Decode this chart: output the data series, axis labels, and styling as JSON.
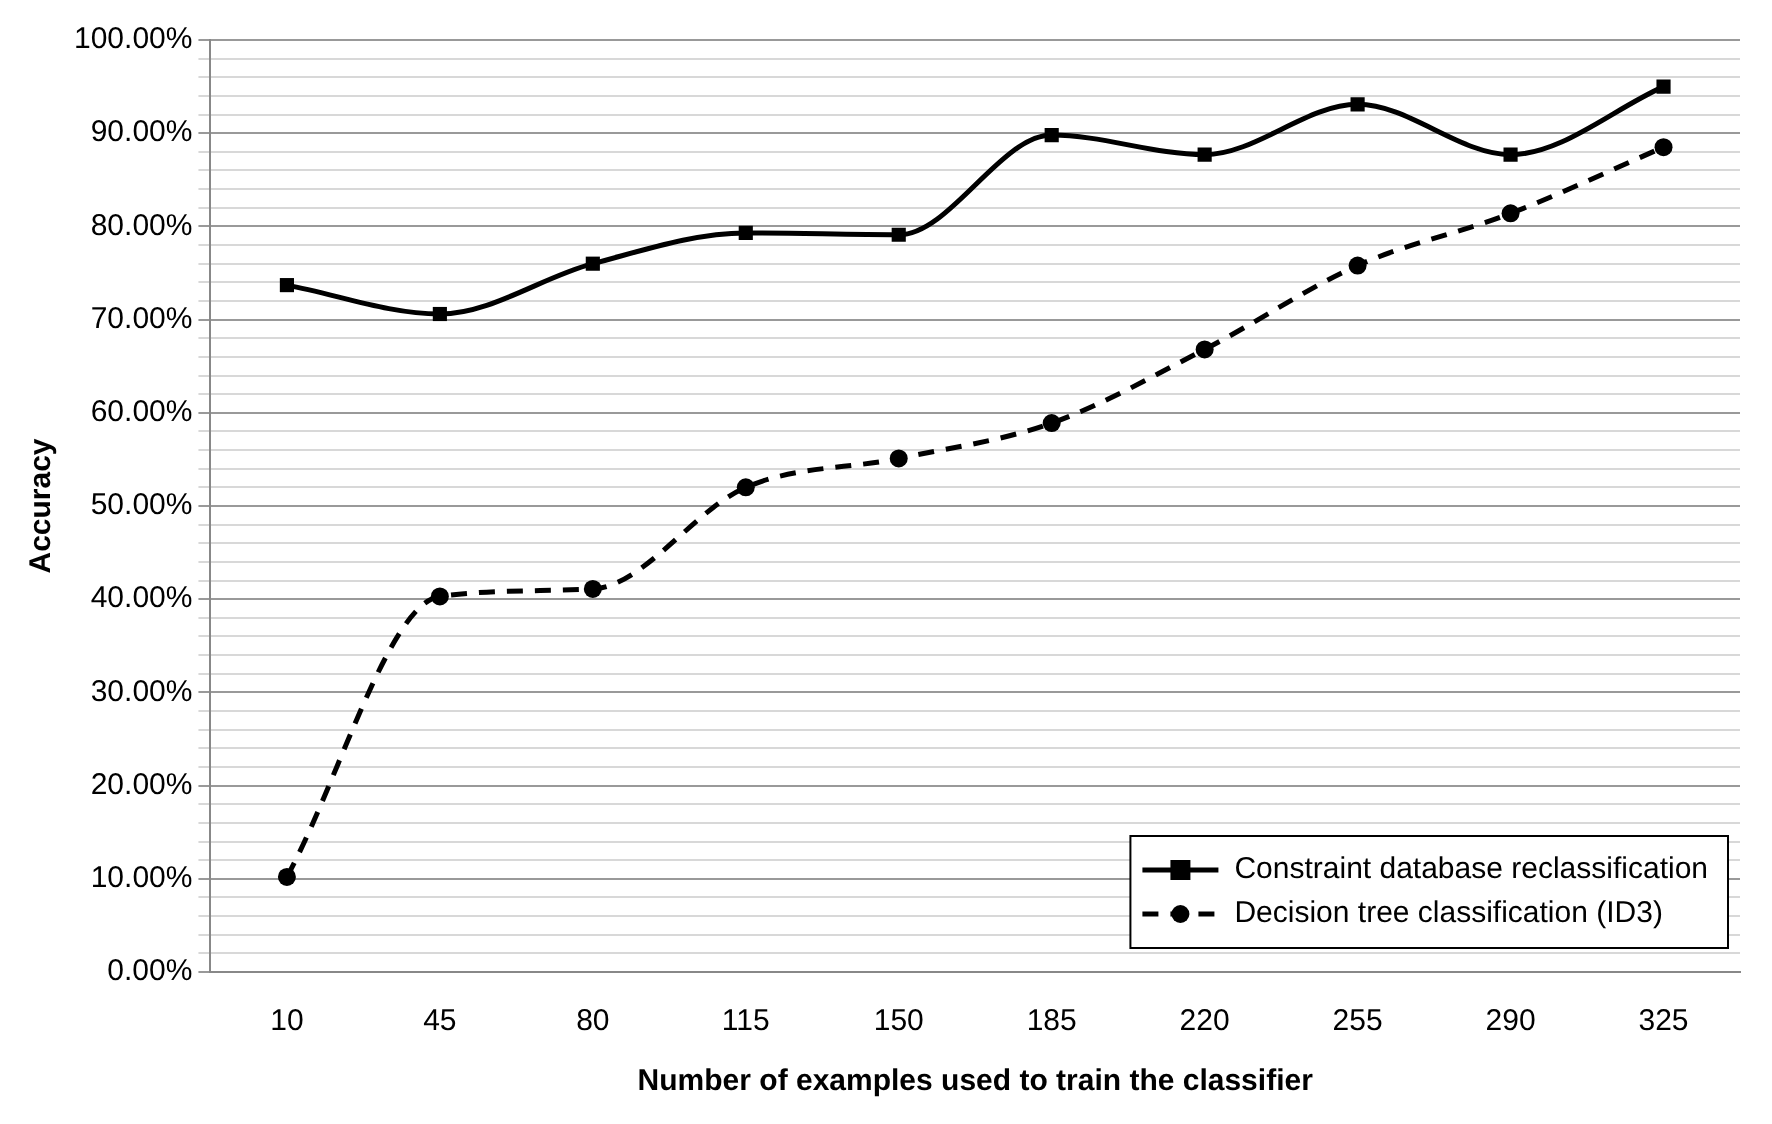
{
  "chart_data": {
    "type": "line",
    "xlabel": "Number of examples used to train the classifier",
    "ylabel": "Accuracy",
    "categories": [
      "10",
      "45",
      "80",
      "115",
      "150",
      "185",
      "220",
      "255",
      "290",
      "325"
    ],
    "series": [
      {
        "name": "Constraint database reclassification",
        "color": "#000000",
        "marker": "square",
        "line_style": "solid",
        "values": [
          73.7,
          70.6,
          76.0,
          79.3,
          79.1,
          89.8,
          87.7,
          93.1,
          87.7,
          95.0
        ]
      },
      {
        "name": "Decision tree classification (ID3)",
        "color": "#000000",
        "marker": "circle",
        "line_style": "dashed",
        "values": [
          10.2,
          40.3,
          41.1,
          52.0,
          55.1,
          58.9,
          66.8,
          75.8,
          81.4,
          88.5
        ]
      }
    ],
    "ylim": [
      0,
      100
    ],
    "yticks": [
      {
        "value": 0,
        "label": "0.00%"
      },
      {
        "value": 2,
        "label": null
      },
      {
        "value": 4,
        "label": null
      },
      {
        "value": 6,
        "label": null
      },
      {
        "value": 8,
        "label": null
      },
      {
        "value": 10,
        "label": "10.00%"
      },
      {
        "value": 12,
        "label": null
      },
      {
        "value": 14,
        "label": null
      },
      {
        "value": 16,
        "label": null
      },
      {
        "value": 18,
        "label": null
      },
      {
        "value": 20,
        "label": "20.00%"
      },
      {
        "value": 22,
        "label": null
      },
      {
        "value": 24,
        "label": null
      },
      {
        "value": 26,
        "label": null
      },
      {
        "value": 28,
        "label": null
      },
      {
        "value": 30,
        "label": "30.00%"
      },
      {
        "value": 32,
        "label": null
      },
      {
        "value": 34,
        "label": null
      },
      {
        "value": 36,
        "label": null
      },
      {
        "value": 38,
        "label": null
      },
      {
        "value": 40,
        "label": "40.00%"
      },
      {
        "value": 42,
        "label": null
      },
      {
        "value": 44,
        "label": null
      },
      {
        "value": 46,
        "label": null
      },
      {
        "value": 48,
        "label": null
      },
      {
        "value": 50,
        "label": "50.00%"
      },
      {
        "value": 52,
        "label": null
      },
      {
        "value": 54,
        "label": null
      },
      {
        "value": 56,
        "label": null
      },
      {
        "value": 58,
        "label": null
      },
      {
        "value": 60,
        "label": "60.00%"
      },
      {
        "value": 62,
        "label": null
      },
      {
        "value": 64,
        "label": null
      },
      {
        "value": 66,
        "label": null
      },
      {
        "value": 68,
        "label": null
      },
      {
        "value": 70,
        "label": "70.00%"
      },
      {
        "value": 72,
        "label": null
      },
      {
        "value": 74,
        "label": null
      },
      {
        "value": 76,
        "label": null
      },
      {
        "value": 78,
        "label": null
      },
      {
        "value": 80,
        "label": "80.00%"
      },
      {
        "value": 82,
        "label": null
      },
      {
        "value": 84,
        "label": null
      },
      {
        "value": 86,
        "label": null
      },
      {
        "value": 88,
        "label": null
      },
      {
        "value": 90,
        "label": "90.00%"
      },
      {
        "value": 92,
        "label": null
      },
      {
        "value": 94,
        "label": null
      },
      {
        "value": 96,
        "label": null
      },
      {
        "value": 98,
        "label": null
      },
      {
        "value": 100,
        "label": "100.00%"
      }
    ],
    "grid": "y",
    "legend": "bottom right"
  }
}
